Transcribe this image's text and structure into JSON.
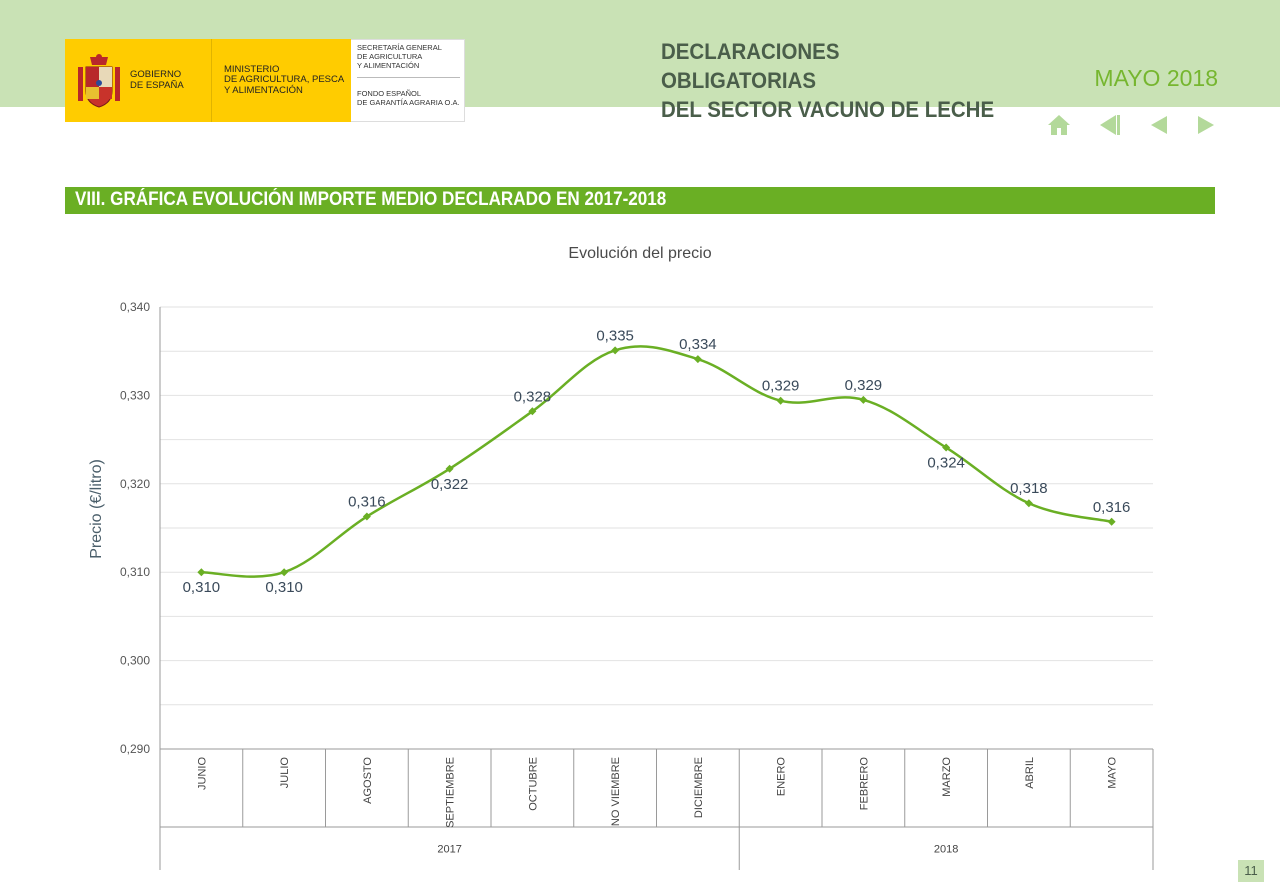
{
  "header": {
    "logo": {
      "gov_text": "GOBIERNO\nDE ESPAÑA",
      "ministry_text": "MINISTERIO\nDE AGRICULTURA, PESCA\nY ALIMENTACIÓN",
      "secretaria_text": "SECRETARÍA GENERAL\nDE AGRICULTURA\nY ALIMENTACIÓN",
      "fega_text": "FONDO ESPAÑOL\nDE GARANTÍA AGRARIA O.A."
    },
    "title": "DECLARACIONES OBLIGATORIAS\nDEL SECTOR VACUNO DE LECHE",
    "date": "MAYO 2018",
    "nav": {
      "home_icon": "home-icon",
      "first_icon": "first-page-icon",
      "prev_icon": "previous-page-icon",
      "next_icon": "next-page-icon"
    }
  },
  "section": {
    "title": "VIII. GRÁFICA EVOLUCIÓN IMPORTE MEDIO DECLARADO EN 2017-2018"
  },
  "chart_data": {
    "type": "line",
    "title": "Evolución del precio",
    "ylabel": "Precio (€/litro)",
    "xlabel": "",
    "ylim": [
      0.29,
      0.34
    ],
    "yticks": [
      0.29,
      0.3,
      0.31,
      0.32,
      0.33,
      0.34
    ],
    "ytick_labels": [
      "0,290",
      "0,300",
      "0,310",
      "0,320",
      "0,330",
      "0,340"
    ],
    "grid": true,
    "categories": [
      "JUNIO",
      "JULIO",
      "AGOSTO",
      "SEPTIEMBRE",
      "OCTUBRE",
      "NO VIEMBRE",
      "DICIEMBRE",
      "ENERO",
      "FEBRERO",
      "MARZO",
      "ABRIL",
      "MAYO"
    ],
    "groups": [
      {
        "label": "2017",
        "count": 7
      },
      {
        "label": "2018",
        "count": 5
      }
    ],
    "series": [
      {
        "values": [
          0.31,
          0.31,
          0.3163,
          0.3217,
          0.3282,
          0.3351,
          0.3341,
          0.3294,
          0.3295,
          0.3241,
          0.3178,
          0.3157
        ],
        "data_labels": [
          "0,310",
          "0,310",
          "0,316",
          "0,322",
          "0,328",
          "0,335",
          "0,334",
          "0,329",
          "0,329",
          "0,324",
          "0,318",
          "0,316"
        ],
        "color": "#6aaf24"
      }
    ]
  },
  "page_number": "11",
  "colors": {
    "band": "#c9e2b5",
    "accent": "#6aaf24",
    "title_text": "#4a5e4a",
    "date_text": "#76b62f"
  }
}
